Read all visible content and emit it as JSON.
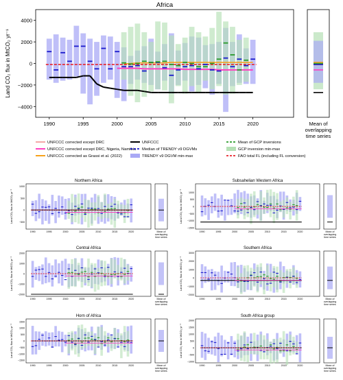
{
  "figure": {
    "main_title": "Africa",
    "main_ylabel": "Land CO₂ flux in MtCO₂ yr⁻¹",
    "main_yticks": [
      "4000",
      "2000",
      "0",
      "−2000",
      "−4000"
    ],
    "main_xticks": [
      "1990",
      "1995",
      "2000",
      "2005",
      "2010",
      "2015",
      "2020"
    ],
    "mean_label_lines": [
      "Mean of",
      "overlapping",
      "time series"
    ],
    "legend": [
      {
        "label": "UNFCCC corrected except DRC",
        "color": "#f4a6a6",
        "kind": "line"
      },
      {
        "label": "UNFCCC corrected except DRC, Nigeria, Namibia",
        "color": "#ff3fbf",
        "kind": "line"
      },
      {
        "label": "UNFCCC corrected as Grassi et al. (2022)",
        "color": "#f7a11a",
        "kind": "line"
      },
      {
        "label": "UNFCCC",
        "color": "#000000",
        "kind": "line"
      },
      {
        "label": "Median of TRENDY v9 DGVMs",
        "color": "#1a1acc",
        "kind": "dash"
      },
      {
        "label": "TRENDY v9 DGVM min-max",
        "color": "#a9a9f5",
        "kind": "box"
      },
      {
        "label": "Mean of GCP inversions",
        "color": "#2a9a2a",
        "kind": "dash"
      },
      {
        "label": "GCP inversion min-max",
        "color": "#b5e0b5",
        "kind": "box"
      },
      {
        "label": "FAO total FL (including FL conversion)",
        "color": "#e8222a",
        "kind": "dash"
      }
    ],
    "small_ylabel": "Land CO₂ flux in MtCO₂ yr⁻¹",
    "small_xticks": [
      "1990",
      "1995",
      "2000",
      "2005",
      "2010",
      "2015",
      "2020"
    ],
    "colors": {
      "trendy_box": "#a9a9f5",
      "gcp_box": "#b5e0b5",
      "trendy_median": "#1a1acc",
      "gcp_mean": "#2a9a2a",
      "fao": "#e8222a",
      "unfccc": "#000000",
      "unfccc_corr": "#ff3fbf",
      "unfccc_grassi": "#f7a11a"
    }
  },
  "chart_data": [
    {
      "type": "bar",
      "title": "Africa",
      "ylabel": "Land CO₂ flux in MtCO₂ yr⁻¹",
      "ylim": [
        -5000,
        5000
      ],
      "xlim": [
        1988,
        2026
      ],
      "x": [
        1990,
        1991,
        1992,
        1993,
        1994,
        1995,
        1996,
        1997,
        1998,
        1999,
        2000,
        2001,
        2002,
        2003,
        2004,
        2005,
        2006,
        2007,
        2008,
        2009,
        2010,
        2011,
        2012,
        2013,
        2014,
        2015,
        2016,
        2017,
        2018,
        2019,
        2020
      ],
      "series": [
        {
          "name": "TRENDY v9 DGVM min-max",
          "low": [
            -1500,
            -1800,
            -1600,
            -1500,
            -1200,
            -2800,
            -3800,
            -3000,
            -1800,
            -1500,
            -3200,
            -3500,
            -1900,
            -1500,
            -1800,
            -2000,
            -2400,
            -1600,
            -2800,
            -2000,
            -1600,
            -2600,
            -2000,
            -2300,
            -2900,
            -1900,
            -4500,
            -2100,
            -1800,
            -1900,
            -1900
          ],
          "high": [
            2300,
            2700,
            2400,
            2200,
            3500,
            2800,
            2300,
            2000,
            2600,
            2500,
            2000,
            1500,
            700,
            1200,
            1600,
            2300,
            1100,
            1800,
            2800,
            1200,
            1900,
            2500,
            2400,
            1700,
            1800,
            2000,
            3300,
            2000,
            2700,
            1400,
            2200
          ]
        },
        {
          "name": "Median of TRENDY v9 DGVMs",
          "values": [
            1100,
            -600,
            1000,
            200,
            1600,
            1600,
            200,
            -500,
            1400,
            -500,
            1100,
            -300,
            -300,
            -200,
            -700,
            100,
            100,
            -400,
            -1100,
            -600,
            -300,
            -200,
            -500,
            -100,
            -600,
            -700,
            500,
            -300,
            400,
            -200,
            400
          ]
        },
        {
          "name": "GCP inversion min-max",
          "low": [
            null,
            null,
            null,
            null,
            null,
            null,
            null,
            null,
            null,
            null,
            null,
            -1500,
            -3000,
            -3600,
            -3100,
            -2600,
            -2400,
            -2500,
            -3700,
            -2100,
            -2800,
            -2100,
            -2700,
            -1600,
            -2400,
            -2100,
            -2900,
            -2800,
            -2000,
            -1700,
            null
          ],
          "high": [
            null,
            null,
            null,
            null,
            null,
            null,
            null,
            null,
            null,
            null,
            null,
            2900,
            3400,
            3700,
            2900,
            2000,
            3900,
            3800,
            2600,
            1800,
            2400,
            3400,
            2900,
            2500,
            3300,
            4800,
            3900,
            3400,
            2200,
            2400,
            null
          ]
        },
        {
          "name": "Mean of GCP inversions",
          "values": [
            null,
            null,
            null,
            null,
            null,
            null,
            null,
            null,
            null,
            null,
            null,
            50,
            -50,
            0,
            200,
            100,
            150,
            200,
            -100,
            -200,
            100,
            0,
            -300,
            -300,
            0,
            400,
            1900,
            800,
            -600,
            300,
            null
          ]
        },
        {
          "name": "FAO total FL (including FL conversion)",
          "values": [
            -100,
            -100,
            -100,
            -100,
            -100,
            -100,
            -100,
            -100,
            -100,
            -100,
            -100,
            -100,
            -100,
            -100,
            -100,
            -100,
            -100,
            -100,
            -100,
            -100,
            -100,
            -100,
            -100,
            -100,
            -100,
            -100,
            -100,
            -100,
            -100,
            -100,
            -100
          ]
        },
        {
          "name": "UNFCCC",
          "values": [
            -1300,
            -1300,
            -1300,
            -1300,
            -1300,
            -1150,
            -1150,
            -1900,
            -2200,
            -2300,
            -2400,
            -2500,
            -2500,
            -2500,
            -2600,
            -2700,
            -2700,
            -2700,
            -2700,
            -2700,
            -2700,
            -2700,
            -2700,
            -2700,
            -2700,
            -2700,
            -2700,
            -2700,
            -2700,
            -2700,
            -2700
          ]
        },
        {
          "name": "UNFCCC corrected except DRC, Nigeria, Namibia",
          "values": [
            null,
            null,
            null,
            null,
            null,
            null,
            null,
            null,
            null,
            null,
            -450,
            -450,
            -450,
            -450,
            -500,
            -500,
            -500,
            -500,
            -500,
            -500,
            -550,
            -550,
            -550,
            -550,
            -550,
            -600,
            -600,
            -600,
            -600,
            -600,
            -600
          ]
        },
        {
          "name": "UNFCCC corrected as Grassi et al. (2022)",
          "values": [
            null,
            null,
            null,
            null,
            null,
            null,
            null,
            null,
            null,
            null,
            null,
            -50,
            0,
            50,
            50,
            50,
            50,
            50,
            100,
            100,
            100,
            100,
            100,
            100,
            100,
            100,
            100,
            100,
            100,
            100,
            100
          ]
        }
      ],
      "overlap_mean": {
        "trendy_low": -1800,
        "trendy_high": 2100,
        "gcp_low": -2400,
        "gcp_high": 2900,
        "trendy_median": -100,
        "gcp_mean": 0,
        "fao": -100,
        "unfccc": -2700,
        "unfccc_corr": -600,
        "unfccc_grassi": 100
      }
    },
    {
      "type": "bar",
      "title": "Northern Africa",
      "xlim": [
        1988,
        2026
      ],
      "ylim": [
        -800,
        1100
      ],
      "yticks": [
        "1000",
        "500",
        "0",
        "−500"
      ],
      "yticks_v": [
        1000,
        500,
        0,
        -500
      ],
      "unfccc": 0,
      "seed": 3
    },
    {
      "type": "bar",
      "title": "Subsahelian Western Africa",
      "xlim": [
        1988,
        2026
      ],
      "ylim": [
        -1600,
        1600
      ],
      "yticks": [
        "1000",
        "500",
        "0",
        "−500",
        "−1000",
        "−1500"
      ],
      "yticks_v": [
        1000,
        500,
        0,
        -500,
        -1000,
        -1500
      ],
      "unfccc": -1100,
      "seed": 7
    },
    {
      "type": "bar",
      "title": "Central Africa",
      "xlim": [
        1988,
        2026
      ],
      "ylim": [
        -2200,
        2200
      ],
      "yticks": [
        "2000",
        "1000",
        "0",
        "−1000",
        "−2000"
      ],
      "yticks_v": [
        2000,
        1000,
        0,
        -1000,
        -2000
      ],
      "unfccc": -2000,
      "seed": 11
    },
    {
      "type": "bar",
      "title": "Southern Africa",
      "xlim": [
        1988,
        2026
      ],
      "ylim": [
        -2200,
        3200
      ],
      "yticks": [
        "3000",
        "2000",
        "1000",
        "0",
        "−1000",
        "−2000"
      ],
      "yticks_v": [
        3000,
        2000,
        1000,
        0,
        -1000,
        -2000
      ],
      "unfccc": -300,
      "seed": 13
    },
    {
      "type": "bar",
      "title": "Horn of Africa",
      "xlim": [
        1988,
        2026
      ],
      "ylim": [
        -1700,
        1700
      ],
      "yticks": [
        "1500",
        "1000",
        "500",
        "0",
        "−500",
        "−1000",
        "−1500"
      ],
      "yticks_v": [
        1500,
        1000,
        500,
        0,
        -500,
        -1000,
        -1500
      ],
      "unfccc": 0,
      "seed": 17
    },
    {
      "type": "bar",
      "title": "South Africa group",
      "xlim": [
        1988,
        2026
      ],
      "ylim": [
        -1100,
        2100
      ],
      "yticks": [
        "2000",
        "1500",
        "1000",
        "500",
        "0",
        "−500",
        "−1000"
      ],
      "yticks_v": [
        2000,
        1500,
        1000,
        500,
        0,
        -500,
        -1000
      ],
      "unfccc": 0,
      "seed": 19
    }
  ]
}
